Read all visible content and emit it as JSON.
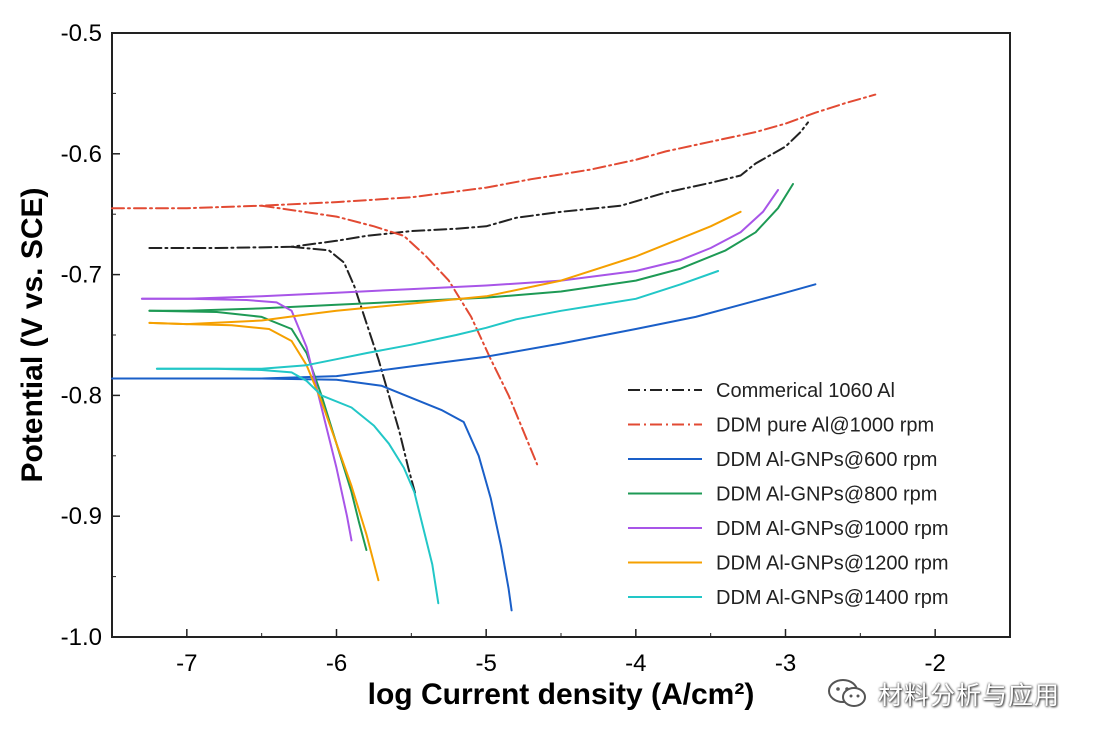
{
  "chart_data": {
    "type": "line",
    "title": "",
    "xlabel": "log Current density (A/cm²)",
    "ylabel": "Potential (V vs. SCE)",
    "xlim": [
      -7.5,
      -1.5
    ],
    "ylim": [
      -1.0,
      -0.5
    ],
    "y_inverted": true,
    "x_ticks": [
      -7,
      -6,
      -5,
      -4,
      -3,
      -2
    ],
    "x_tick_labels": [
      "-7",
      "-6",
      "-5",
      "-4",
      "-3",
      "-2"
    ],
    "y_ticks": [
      -0.5,
      -0.6,
      -0.7,
      -0.8,
      -0.9,
      -1.0
    ],
    "y_tick_labels": [
      "-0.5",
      "-0.6",
      "-0.7",
      "-0.8",
      "-0.9",
      "-1.0"
    ],
    "legend_position": "bottom-right",
    "series": [
      {
        "name": "Commerical 1060 Al",
        "color": "#222222",
        "dash": "dash-dot",
        "anodic": [
          [
            -7.25,
            -0.678
          ],
          [
            -6.8,
            -0.678
          ],
          [
            -6.3,
            -0.677
          ],
          [
            -6.0,
            -0.672
          ],
          [
            -5.8,
            -0.668
          ],
          [
            -5.5,
            -0.664
          ],
          [
            -5.2,
            -0.662
          ],
          [
            -5.0,
            -0.66
          ],
          [
            -4.8,
            -0.653
          ],
          [
            -4.5,
            -0.648
          ],
          [
            -4.1,
            -0.643
          ],
          [
            -3.8,
            -0.632
          ],
          [
            -3.5,
            -0.624
          ],
          [
            -3.3,
            -0.618
          ],
          [
            -3.2,
            -0.608
          ],
          [
            -3.0,
            -0.594
          ],
          [
            -2.9,
            -0.582
          ],
          [
            -2.85,
            -0.574
          ]
        ],
        "cathodic": [
          [
            -6.3,
            -0.677
          ],
          [
            -6.05,
            -0.68
          ],
          [
            -5.95,
            -0.69
          ],
          [
            -5.88,
            -0.71
          ],
          [
            -5.8,
            -0.74
          ],
          [
            -5.72,
            -0.77
          ],
          [
            -5.65,
            -0.8
          ],
          [
            -5.58,
            -0.83
          ],
          [
            -5.52,
            -0.86
          ],
          [
            -5.47,
            -0.883
          ]
        ]
      },
      {
        "name": "DDM pure Al@1000 rpm",
        "color": "#e24a33",
        "dash": "dash-dot",
        "anodic": [
          [
            -7.5,
            -0.645
          ],
          [
            -7.0,
            -0.645
          ],
          [
            -6.5,
            -0.643
          ],
          [
            -6.0,
            -0.64
          ],
          [
            -5.5,
            -0.636
          ],
          [
            -5.0,
            -0.628
          ],
          [
            -4.7,
            -0.621
          ],
          [
            -4.3,
            -0.613
          ],
          [
            -4.0,
            -0.605
          ],
          [
            -3.8,
            -0.598
          ],
          [
            -3.5,
            -0.59
          ],
          [
            -3.2,
            -0.582
          ],
          [
            -3.0,
            -0.575
          ],
          [
            -2.8,
            -0.566
          ],
          [
            -2.6,
            -0.558
          ],
          [
            -2.4,
            -0.551
          ]
        ],
        "cathodic": [
          [
            -6.5,
            -0.643
          ],
          [
            -6.0,
            -0.652
          ],
          [
            -5.75,
            -0.66
          ],
          [
            -5.55,
            -0.668
          ],
          [
            -5.4,
            -0.685
          ],
          [
            -5.25,
            -0.705
          ],
          [
            -5.1,
            -0.735
          ],
          [
            -4.97,
            -0.77
          ],
          [
            -4.85,
            -0.8
          ],
          [
            -4.75,
            -0.83
          ],
          [
            -4.7,
            -0.845
          ],
          [
            -4.66,
            -0.857
          ]
        ]
      },
      {
        "name": "DDM Al-GNPs@600 rpm",
        "color": "#1a5fc8",
        "dash": "solid",
        "anodic": [
          [
            -7.5,
            -0.786
          ],
          [
            -7.0,
            -0.786
          ],
          [
            -6.5,
            -0.786
          ],
          [
            -6.0,
            -0.784
          ],
          [
            -5.5,
            -0.776
          ],
          [
            -5.0,
            -0.768
          ],
          [
            -4.5,
            -0.757
          ],
          [
            -4.0,
            -0.745
          ],
          [
            -3.6,
            -0.735
          ],
          [
            -3.3,
            -0.725
          ],
          [
            -3.0,
            -0.715
          ],
          [
            -2.8,
            -0.708
          ]
        ],
        "cathodic": [
          [
            -6.5,
            -0.786
          ],
          [
            -6.0,
            -0.787
          ],
          [
            -5.7,
            -0.792
          ],
          [
            -5.5,
            -0.802
          ],
          [
            -5.3,
            -0.812
          ],
          [
            -5.15,
            -0.822
          ],
          [
            -5.05,
            -0.85
          ],
          [
            -4.97,
            -0.885
          ],
          [
            -4.9,
            -0.925
          ],
          [
            -4.85,
            -0.96
          ],
          [
            -4.83,
            -0.978
          ]
        ]
      },
      {
        "name": "DDM Al-GNPs@800 rpm",
        "color": "#1e9a55",
        "dash": "solid",
        "anodic": [
          [
            -7.25,
            -0.73
          ],
          [
            -7.0,
            -0.73
          ],
          [
            -6.5,
            -0.728
          ],
          [
            -6.0,
            -0.725
          ],
          [
            -5.5,
            -0.722
          ],
          [
            -5.0,
            -0.719
          ],
          [
            -4.5,
            -0.714
          ],
          [
            -4.0,
            -0.705
          ],
          [
            -3.7,
            -0.695
          ],
          [
            -3.4,
            -0.68
          ],
          [
            -3.2,
            -0.665
          ],
          [
            -3.05,
            -0.645
          ],
          [
            -2.95,
            -0.625
          ]
        ],
        "cathodic": [
          [
            -7.25,
            -0.73
          ],
          [
            -6.8,
            -0.731
          ],
          [
            -6.5,
            -0.735
          ],
          [
            -6.3,
            -0.745
          ],
          [
            -6.2,
            -0.765
          ],
          [
            -6.1,
            -0.8
          ],
          [
            -6.0,
            -0.84
          ],
          [
            -5.9,
            -0.88
          ],
          [
            -5.85,
            -0.905
          ],
          [
            -5.8,
            -0.928
          ]
        ]
      },
      {
        "name": "DDM Al-GNPs@1000 rpm",
        "color": "#a855e8",
        "dash": "solid",
        "anodic": [
          [
            -7.3,
            -0.72
          ],
          [
            -7.0,
            -0.72
          ],
          [
            -6.5,
            -0.718
          ],
          [
            -6.0,
            -0.715
          ],
          [
            -5.5,
            -0.712
          ],
          [
            -5.0,
            -0.709
          ],
          [
            -4.5,
            -0.705
          ],
          [
            -4.0,
            -0.697
          ],
          [
            -3.7,
            -0.688
          ],
          [
            -3.5,
            -0.678
          ],
          [
            -3.3,
            -0.665
          ],
          [
            -3.15,
            -0.648
          ],
          [
            -3.05,
            -0.63
          ]
        ],
        "cathodic": [
          [
            -7.3,
            -0.72
          ],
          [
            -7.0,
            -0.72
          ],
          [
            -6.6,
            -0.721
          ],
          [
            -6.4,
            -0.723
          ],
          [
            -6.3,
            -0.73
          ],
          [
            -6.2,
            -0.76
          ],
          [
            -6.1,
            -0.81
          ],
          [
            -6.0,
            -0.86
          ],
          [
            -5.93,
            -0.9
          ],
          [
            -5.9,
            -0.92
          ]
        ]
      },
      {
        "name": "DDM Al-GNPs@1200 rpm",
        "color": "#f5a000",
        "dash": "solid",
        "anodic": [
          [
            -7.25,
            -0.74
          ],
          [
            -7.0,
            -0.741
          ],
          [
            -6.5,
            -0.738
          ],
          [
            -6.2,
            -0.733
          ],
          [
            -6.0,
            -0.73
          ],
          [
            -5.5,
            -0.724
          ],
          [
            -5.0,
            -0.718
          ],
          [
            -4.5,
            -0.705
          ],
          [
            -4.0,
            -0.685
          ],
          [
            -3.7,
            -0.67
          ],
          [
            -3.5,
            -0.66
          ],
          [
            -3.3,
            -0.648
          ]
        ],
        "cathodic": [
          [
            -7.25,
            -0.74
          ],
          [
            -7.0,
            -0.741
          ],
          [
            -6.7,
            -0.742
          ],
          [
            -6.45,
            -0.745
          ],
          [
            -6.3,
            -0.755
          ],
          [
            -6.2,
            -0.775
          ],
          [
            -6.1,
            -0.805
          ],
          [
            -6.0,
            -0.84
          ],
          [
            -5.9,
            -0.875
          ],
          [
            -5.8,
            -0.915
          ],
          [
            -5.72,
            -0.953
          ]
        ]
      },
      {
        "name": "DDM Al-GNPs@1400 rpm",
        "color": "#22c7c7",
        "dash": "solid",
        "anodic": [
          [
            -7.2,
            -0.778
          ],
          [
            -7.0,
            -0.778
          ],
          [
            -6.5,
            -0.778
          ],
          [
            -6.2,
            -0.775
          ],
          [
            -6.0,
            -0.77
          ],
          [
            -5.8,
            -0.765
          ],
          [
            -5.5,
            -0.758
          ],
          [
            -5.2,
            -0.75
          ],
          [
            -5.0,
            -0.744
          ],
          [
            -4.8,
            -0.737
          ],
          [
            -4.5,
            -0.73
          ],
          [
            -4.2,
            -0.724
          ],
          [
            -4.0,
            -0.72
          ],
          [
            -3.7,
            -0.708
          ],
          [
            -3.45,
            -0.697
          ]
        ],
        "cathodic": [
          [
            -7.2,
            -0.778
          ],
          [
            -6.8,
            -0.778
          ],
          [
            -6.5,
            -0.779
          ],
          [
            -6.3,
            -0.781
          ],
          [
            -6.2,
            -0.788
          ],
          [
            -6.1,
            -0.8
          ],
          [
            -5.9,
            -0.81
          ],
          [
            -5.75,
            -0.825
          ],
          [
            -5.65,
            -0.84
          ],
          [
            -5.55,
            -0.86
          ],
          [
            -5.48,
            -0.88
          ],
          [
            -5.42,
            -0.91
          ],
          [
            -5.36,
            -0.94
          ],
          [
            -5.32,
            -0.972
          ]
        ]
      }
    ]
  },
  "watermark": {
    "text": "材料分析与应用",
    "icon": "wechat-bubble-icon"
  }
}
